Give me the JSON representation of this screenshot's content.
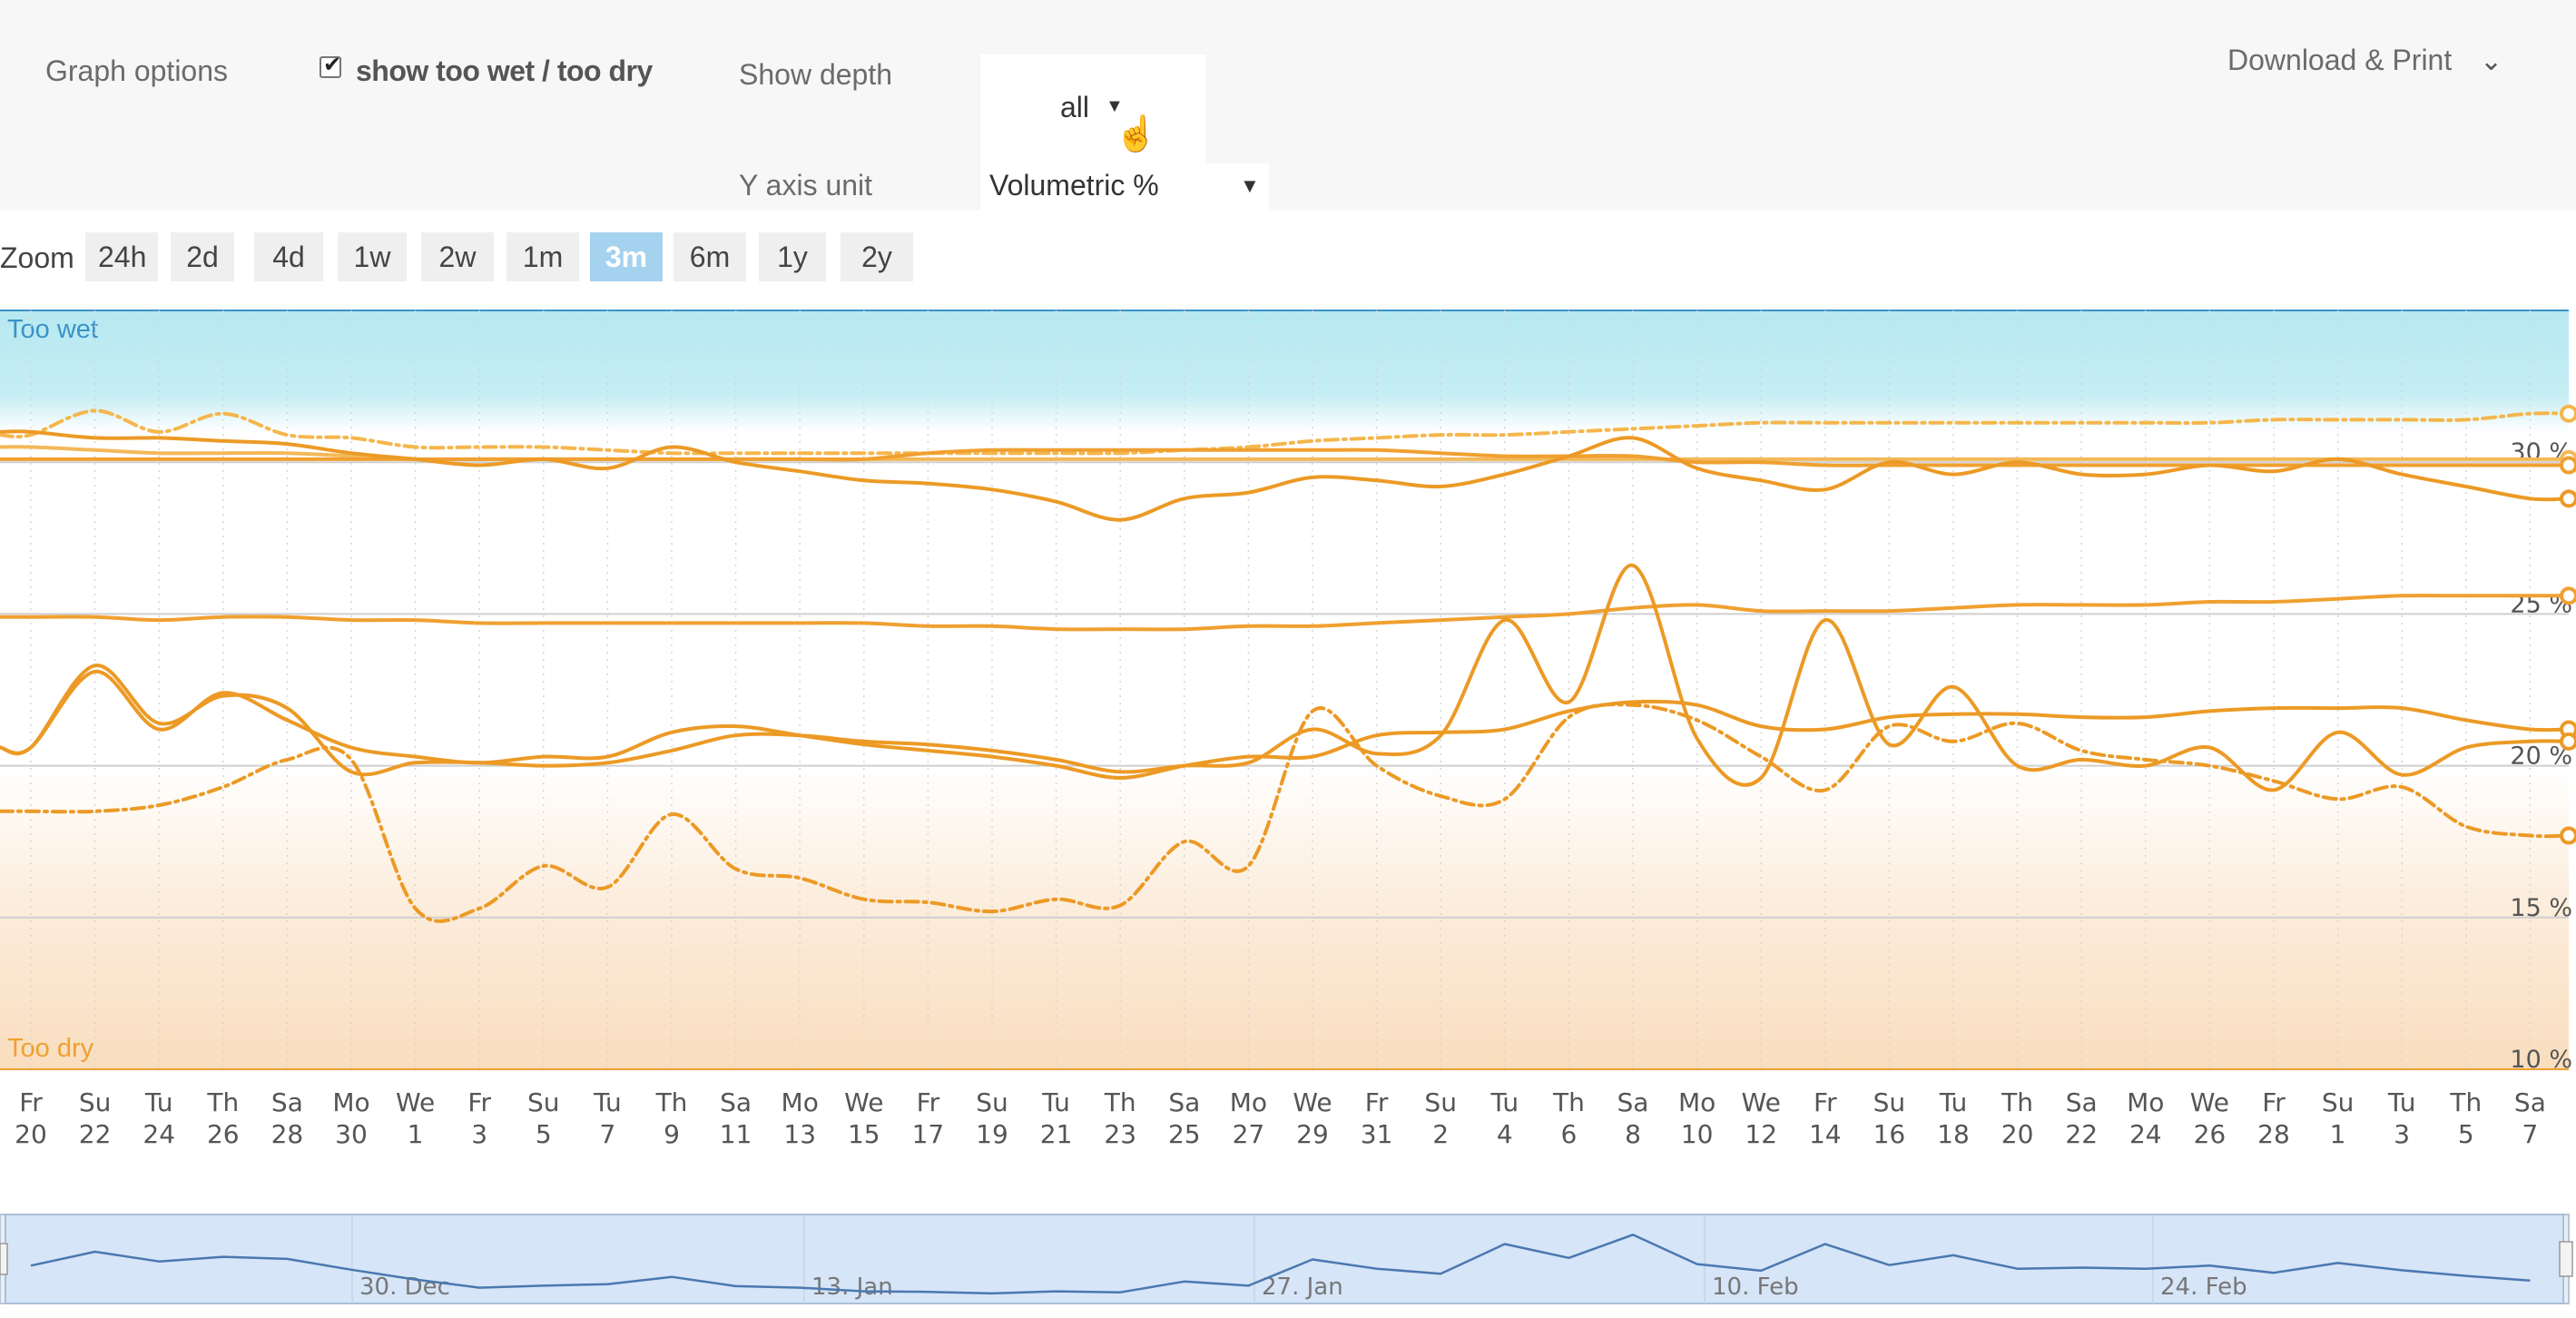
{
  "graph_options": {
    "label": "Graph options",
    "checkbox_label": "show too wet / too dry",
    "checkbox_checked": true,
    "depth_label": "Show depth",
    "depth_value": "all",
    "yaxis_label": "Y axis unit",
    "yaxis_value": "Volumetric %",
    "download_label": "Download & Print"
  },
  "zoom": {
    "label": "Zoom",
    "options": [
      "24h",
      "2d",
      "4d",
      "1w",
      "2w",
      "1m",
      "3m",
      "6m",
      "1y",
      "2y"
    ],
    "selected": "3m"
  },
  "colors": {
    "series": "#f0a030",
    "too_wet": "#9fe1ec",
    "too_dry": "#f8d7b2",
    "navigator": "#d6e5f7",
    "navigator_line": "#4a78b0"
  },
  "chart_data": {
    "type": "line",
    "x_labels": [
      {
        "day": "Fr",
        "date": "20"
      },
      {
        "day": "Su",
        "date": "22"
      },
      {
        "day": "Tu",
        "date": "24"
      },
      {
        "day": "Th",
        "date": "26"
      },
      {
        "day": "Sa",
        "date": "28"
      },
      {
        "day": "Mo",
        "date": "30"
      },
      {
        "day": "We",
        "date": "1"
      },
      {
        "day": "Fr",
        "date": "3"
      },
      {
        "day": "Su",
        "date": "5"
      },
      {
        "day": "Tu",
        "date": "7"
      },
      {
        "day": "Th",
        "date": "9"
      },
      {
        "day": "Sa",
        "date": "11"
      },
      {
        "day": "Mo",
        "date": "13"
      },
      {
        "day": "We",
        "date": "15"
      },
      {
        "day": "Fr",
        "date": "17"
      },
      {
        "day": "Su",
        "date": "19"
      },
      {
        "day": "Tu",
        "date": "21"
      },
      {
        "day": "Th",
        "date": "23"
      },
      {
        "day": "Sa",
        "date": "25"
      },
      {
        "day": "Mo",
        "date": "27"
      },
      {
        "day": "We",
        "date": "29"
      },
      {
        "day": "Fr",
        "date": "31"
      },
      {
        "day": "Su",
        "date": "2"
      },
      {
        "day": "Tu",
        "date": "4"
      },
      {
        "day": "Th",
        "date": "6"
      },
      {
        "day": "Sa",
        "date": "8"
      },
      {
        "day": "Mo",
        "date": "10"
      },
      {
        "day": "We",
        "date": "12"
      },
      {
        "day": "Fr",
        "date": "14"
      },
      {
        "day": "Su",
        "date": "16"
      },
      {
        "day": "Tu",
        "date": "18"
      },
      {
        "day": "Th",
        "date": "20"
      },
      {
        "day": "Sa",
        "date": "22"
      },
      {
        "day": "Mo",
        "date": "24"
      },
      {
        "day": "We",
        "date": "26"
      },
      {
        "day": "Fr",
        "date": "28"
      },
      {
        "day": "Su",
        "date": "1"
      },
      {
        "day": "Tu",
        "date": "3"
      },
      {
        "day": "Th",
        "date": "5"
      },
      {
        "day": "Sa",
        "date": "7"
      }
    ],
    "y_ticks": [
      "10 %",
      "15 %",
      "20 %",
      "25 %",
      "30 %"
    ],
    "ylim": [
      10,
      35
    ],
    "bands": {
      "too_wet": {
        "from": 31,
        "to": 35,
        "label": "Too wet"
      },
      "too_dry": {
        "from": 10,
        "to": 20,
        "label": "Too dry"
      }
    },
    "series": [
      {
        "style": "dashdot",
        "values": [
          30.9,
          31.7,
          31.0,
          31.6,
          30.9,
          30.8,
          30.5,
          30.5,
          30.5,
          30.4,
          30.3,
          30.3,
          30.3,
          30.3,
          30.3,
          30.3,
          30.3,
          30.3,
          30.4,
          30.5,
          30.7,
          30.8,
          30.9,
          30.9,
          31.0,
          31.1,
          31.2,
          31.3,
          31.3,
          31.3,
          31.3,
          31.3,
          31.3,
          31.3,
          31.3,
          31.4,
          31.4,
          31.4,
          31.4,
          31.6
        ]
      },
      {
        "style": "solid",
        "values": [
          30.5,
          30.4,
          30.3,
          30.3,
          30.3,
          30.2,
          30.1,
          30.1,
          30.1,
          30.1,
          30.1,
          30.1,
          30.1,
          30.1,
          30.1,
          30.1,
          30.1,
          30.1,
          30.1,
          30.1,
          30.1,
          30.1,
          30.1,
          30.1,
          30.1,
          30.1,
          30.1,
          30.1,
          30.1,
          30.1,
          30.1,
          30.1,
          30.1,
          30.1,
          30.1,
          30.1,
          30.1,
          30.1,
          30.1,
          30.1
        ]
      },
      {
        "style": "solid",
        "values": [
          30.1,
          30.1,
          30.1,
          30.1,
          30.1,
          30.1,
          30.1,
          30.1,
          30.1,
          30.1,
          30.1,
          30.1,
          30.1,
          30.1,
          30.3,
          30.4,
          30.4,
          30.4,
          30.4,
          30.4,
          30.4,
          30.4,
          30.3,
          30.2,
          30.2,
          30.2,
          30.0,
          30.0,
          29.9,
          29.9,
          29.9,
          29.9,
          29.9,
          29.9,
          29.9,
          29.9,
          29.9,
          29.9,
          29.9,
          29.9
        ]
      },
      {
        "style": "solid",
        "values": [
          31.0,
          30.8,
          30.8,
          30.7,
          30.6,
          30.3,
          30.1,
          29.9,
          30.1,
          29.8,
          30.5,
          30.0,
          29.7,
          29.4,
          29.3,
          29.1,
          28.7,
          28.1,
          28.8,
          29.0,
          29.5,
          29.4,
          29.2,
          29.6,
          30.2,
          30.8,
          29.8,
          29.4,
          29.1,
          30.0,
          29.6,
          30.0,
          29.6,
          29.6,
          29.9,
          29.7,
          30.1,
          29.6,
          29.2,
          28.8
        ]
      },
      {
        "style": "solid",
        "values": [
          24.9,
          24.9,
          24.8,
          24.9,
          24.9,
          24.8,
          24.8,
          24.7,
          24.7,
          24.7,
          24.7,
          24.7,
          24.7,
          24.7,
          24.6,
          24.6,
          24.5,
          24.5,
          24.5,
          24.6,
          24.6,
          24.7,
          24.8,
          24.9,
          25.0,
          25.2,
          25.3,
          25.1,
          25.1,
          25.1,
          25.2,
          25.3,
          25.3,
          25.3,
          25.4,
          25.4,
          25.5,
          25.6,
          25.6,
          25.6
        ]
      },
      {
        "style": "solid",
        "values": [
          20.6,
          23.1,
          21.2,
          22.4,
          21.5,
          20.6,
          20.3,
          20.1,
          20.3,
          20.3,
          21.1,
          21.3,
          21.0,
          20.7,
          20.5,
          20.3,
          20.0,
          19.6,
          20.0,
          20.3,
          20.3,
          21.0,
          21.1,
          21.2,
          21.8,
          22.1,
          22.0,
          21.3,
          21.2,
          21.6,
          21.7,
          21.7,
          21.6,
          21.6,
          21.8,
          21.9,
          21.9,
          21.9,
          21.5,
          21.2
        ]
      },
      {
        "style": "solid",
        "values": [
          20.6,
          23.3,
          21.4,
          22.3,
          21.9,
          19.8,
          20.1,
          20.1,
          20.0,
          20.1,
          20.5,
          21.0,
          21.0,
          20.8,
          20.7,
          20.5,
          20.2,
          19.8,
          20.0,
          20.1,
          21.2,
          20.4,
          21.0,
          24.8,
          22.1,
          26.6,
          20.9,
          19.6,
          24.8,
          20.7,
          22.6,
          20.0,
          20.2,
          20.0,
          20.6,
          19.2,
          21.1,
          19.7,
          20.6,
          20.8
        ]
      },
      {
        "style": "dashdot",
        "values": [
          18.5,
          18.5,
          18.7,
          19.3,
          20.2,
          20.2,
          15.3,
          15.3,
          16.7,
          16.0,
          18.4,
          16.6,
          16.3,
          15.6,
          15.5,
          15.2,
          15.6,
          15.4,
          17.5,
          16.7,
          21.8,
          20.0,
          19.0,
          18.9,
          21.6,
          22.0,
          21.5,
          20.3,
          19.2,
          21.3,
          20.8,
          21.4,
          20.5,
          20.2,
          20.0,
          19.5,
          18.9,
          19.3,
          18.0,
          17.7
        ]
      }
    ],
    "navigator": {
      "labels": [
        "30. Dec",
        "13. Jan",
        "27. Jan",
        "10. Feb",
        "24. Feb"
      ],
      "values": [
        20.6,
        23.3,
        21.4,
        22.3,
        21.9,
        19.8,
        17.9,
        16.3,
        16.7,
        17.0,
        18.4,
        16.6,
        16.3,
        15.6,
        15.5,
        15.2,
        15.6,
        15.4,
        17.5,
        16.7,
        21.8,
        20.0,
        19.0,
        24.8,
        22.1,
        26.6,
        20.9,
        19.6,
        24.8,
        20.7,
        22.6,
        20.0,
        20.2,
        20.0,
        20.6,
        19.2,
        21.1,
        19.7,
        18.6,
        17.7
      ]
    }
  }
}
